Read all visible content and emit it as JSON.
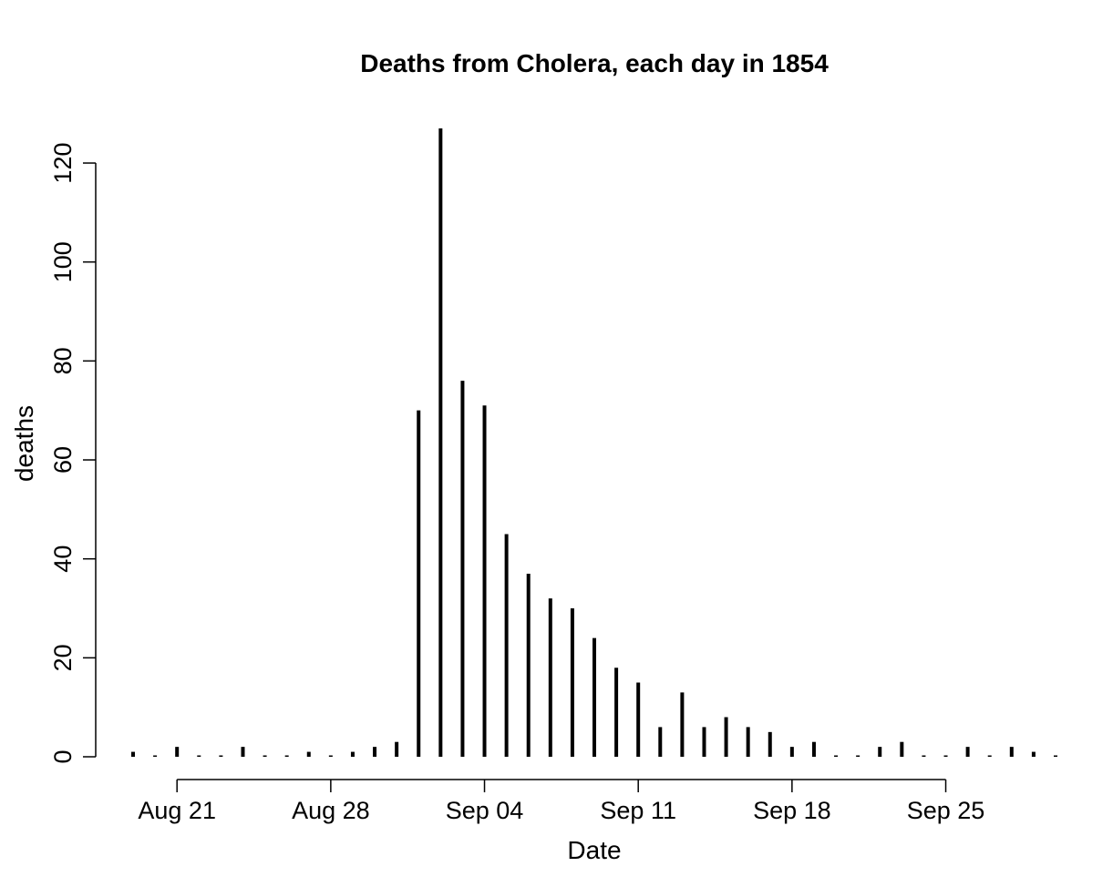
{
  "chart_data": {
    "type": "bar",
    "style": "vertical lines (histogram-like spikes)",
    "title": "Deaths from Cholera, each day in 1854",
    "xlabel": "Date",
    "ylabel": "deaths",
    "x": [
      "1854-08-19",
      "1854-08-20",
      "1854-08-21",
      "1854-08-22",
      "1854-08-23",
      "1854-08-24",
      "1854-08-25",
      "1854-08-26",
      "1854-08-27",
      "1854-08-28",
      "1854-08-29",
      "1854-08-30",
      "1854-08-31",
      "1854-09-01",
      "1854-09-02",
      "1854-09-03",
      "1854-09-04",
      "1854-09-05",
      "1854-09-06",
      "1854-09-07",
      "1854-09-08",
      "1854-09-09",
      "1854-09-10",
      "1854-09-11",
      "1854-09-12",
      "1854-09-13",
      "1854-09-14",
      "1854-09-15",
      "1854-09-16",
      "1854-09-17",
      "1854-09-18",
      "1854-09-19",
      "1854-09-20",
      "1854-09-21",
      "1854-09-22",
      "1854-09-23",
      "1854-09-24",
      "1854-09-25",
      "1854-09-26",
      "1854-09-27",
      "1854-09-28",
      "1854-09-29",
      "1854-09-30"
    ],
    "values": [
      1,
      0,
      2,
      0,
      0,
      2,
      0,
      0,
      1,
      0,
      1,
      2,
      3,
      70,
      127,
      76,
      71,
      45,
      37,
      32,
      30,
      24,
      18,
      15,
      6,
      13,
      6,
      8,
      6,
      5,
      2,
      3,
      0,
      0,
      2,
      3,
      0,
      0,
      2,
      0,
      2,
      1,
      0
    ],
    "xlim": [
      "1854-08-19",
      "1854-09-30"
    ],
    "ylim": [
      0,
      127
    ],
    "x_ticks": [
      {
        "date": "1854-08-21",
        "label": "Aug 21"
      },
      {
        "date": "1854-08-28",
        "label": "Aug 28"
      },
      {
        "date": "1854-09-04",
        "label": "Sep 04"
      },
      {
        "date": "1854-09-11",
        "label": "Sep 11"
      },
      {
        "date": "1854-09-18",
        "label": "Sep 18"
      },
      {
        "date": "1854-09-25",
        "label": "Sep 25"
      }
    ],
    "y_ticks": [
      0,
      20,
      40,
      60,
      80,
      100,
      120
    ],
    "grid": false,
    "legend": "none",
    "color": "#000000"
  }
}
